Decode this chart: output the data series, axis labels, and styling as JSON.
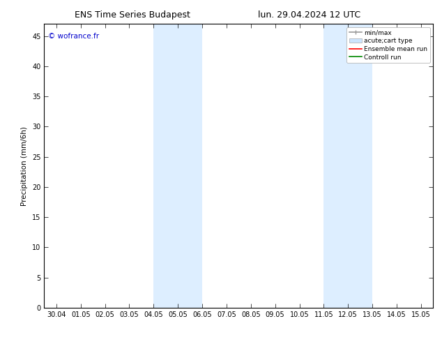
{
  "title_left": "ENS Time Series Budapest",
  "title_right": "lun. 29.04.2024 12 UTC",
  "ylabel": "Precipitation (mm/6h)",
  "watermark": "© wofrance.fr",
  "watermark_color": "#0000cc",
  "background_color": "#ffffff",
  "plot_bg_color": "#ffffff",
  "shaded_bands": [
    {
      "xmin": 4.0,
      "xmax": 5.0,
      "color": "#ddeeff"
    },
    {
      "xmin": 5.0,
      "xmax": 6.0,
      "color": "#ddeeff"
    },
    {
      "xmin": 11.0,
      "xmax": 12.0,
      "color": "#ddeeff"
    },
    {
      "xmin": 12.0,
      "xmax": 13.0,
      "color": "#ddeeff"
    }
  ],
  "xmin": -0.5,
  "xmax": 15.5,
  "ymin": 0,
  "ymax": 47,
  "yticks": [
    0,
    5,
    10,
    15,
    20,
    25,
    30,
    35,
    40,
    45
  ],
  "xtick_labels": [
    "30.04",
    "01.05",
    "02.05",
    "03.05",
    "04.05",
    "05.05",
    "06.05",
    "07.05",
    "08.05",
    "09.05",
    "10.05",
    "11.05",
    "12.05",
    "13.05",
    "14.05",
    "15.05"
  ],
  "xtick_positions": [
    0,
    1,
    2,
    3,
    4,
    5,
    6,
    7,
    8,
    9,
    10,
    11,
    12,
    13,
    14,
    15
  ],
  "legend_items": [
    {
      "label": "min/max",
      "color": "#999999",
      "type": "line_with_caps"
    },
    {
      "label": "acute;cart type",
      "color": "#cce5ff",
      "type": "filled_box"
    },
    {
      "label": "Ensemble mean run",
      "color": "#ff0000",
      "type": "line"
    },
    {
      "label": "Controll run",
      "color": "#008800",
      "type": "line"
    }
  ],
  "title_fontsize": 9,
  "axis_fontsize": 7.5,
  "tick_fontsize": 7,
  "watermark_fontsize": 7.5,
  "legend_fontsize": 6.5,
  "figsize": [
    6.34,
    4.9
  ],
  "dpi": 100
}
